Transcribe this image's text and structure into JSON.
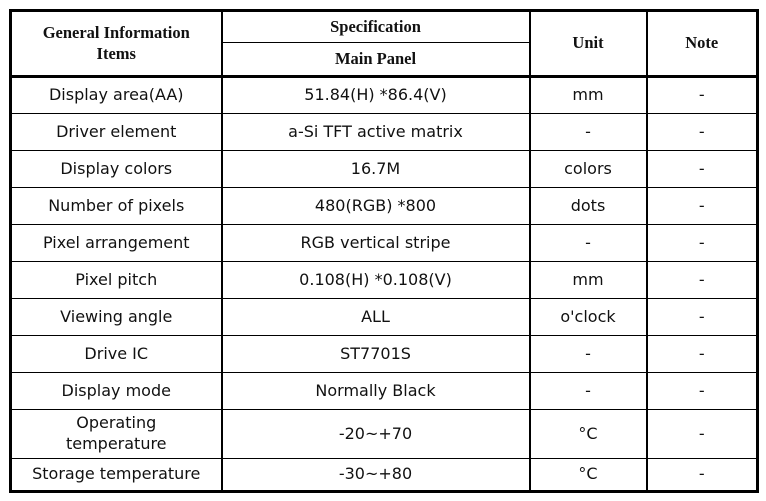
{
  "table": {
    "header": {
      "items": "General Information\nItems",
      "specification": "Specification",
      "main_panel": "Main Panel",
      "unit": "Unit",
      "note": "Note"
    },
    "rows": [
      {
        "item": "Display area(AA)",
        "spec": "51.84(H) *86.4(V)",
        "unit": "mm",
        "note": "-"
      },
      {
        "item": "Driver element",
        "spec": "a-Si TFT active matrix",
        "unit": "-",
        "note": "-"
      },
      {
        "item": "Display colors",
        "spec": "16.7M",
        "unit": "colors",
        "note": "-"
      },
      {
        "item": "Number of pixels",
        "spec": "480(RGB) *800",
        "unit": "dots",
        "note": "-"
      },
      {
        "item": "Pixel arrangement",
        "spec": "RGB vertical stripe",
        "unit": "-",
        "note": "-"
      },
      {
        "item": "Pixel pitch",
        "spec": "0.108(H) *0.108(V)",
        "unit": "mm",
        "note": "-"
      },
      {
        "item": "Viewing angle",
        "spec": "ALL",
        "unit": "o'clock",
        "note": "-"
      },
      {
        "item": "Drive IC",
        "spec": "ST7701S",
        "unit": "-",
        "note": "-"
      },
      {
        "item": "Display mode",
        "spec": "Normally Black",
        "unit": "-",
        "note": "-"
      },
      {
        "item": "Operating\ntemperature",
        "spec": "-20~+70",
        "unit": "°C",
        "note": "-"
      },
      {
        "item": "Storage temperature",
        "spec": "-30~+80",
        "unit": "°C",
        "note": "-"
      }
    ],
    "colors": {
      "border": "#000000",
      "text": "#111111",
      "background": "#ffffff"
    }
  }
}
